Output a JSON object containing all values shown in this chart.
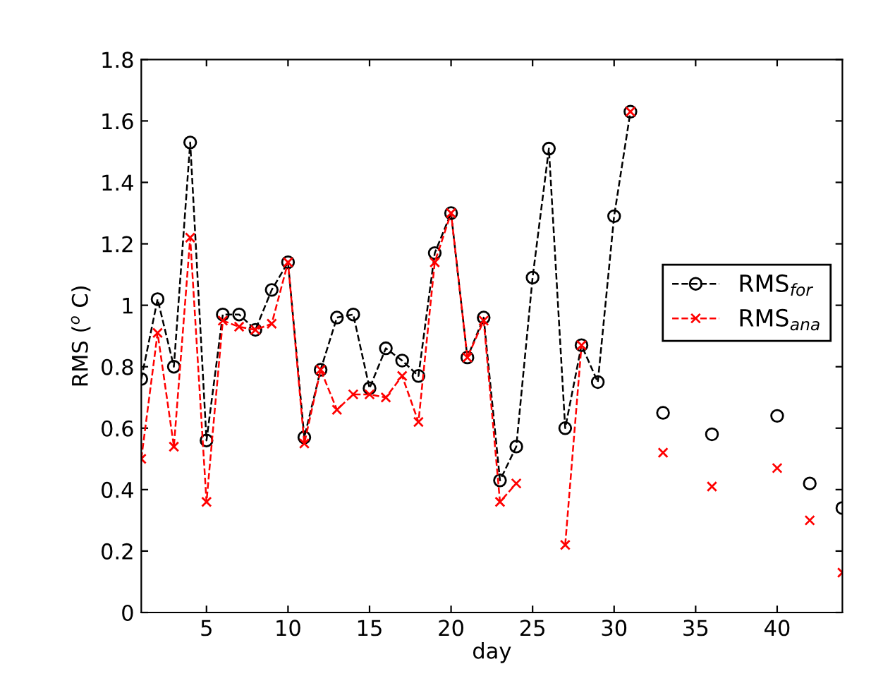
{
  "chart_data": {
    "type": "line",
    "xlabel": "day",
    "ylabel": "RMS ($^{o}$ C)",
    "x": [
      1,
      2,
      3,
      4,
      5,
      6,
      7,
      8,
      9,
      10,
      11,
      12,
      13,
      14,
      15,
      16,
      17,
      18,
      19,
      20,
      21,
      22,
      23,
      24,
      25,
      26,
      27,
      28,
      29,
      30,
      31,
      32,
      33,
      34,
      35,
      36,
      37,
      38,
      39,
      40,
      41,
      42,
      43,
      44
    ],
    "series": [
      {
        "name": "RMS$_{for}$",
        "color": "#000000",
        "marker": "circle",
        "line_style": "dashed",
        "values": [
          0.76,
          1.02,
          0.8,
          1.53,
          0.56,
          0.97,
          0.97,
          0.92,
          1.05,
          1.14,
          0.57,
          0.79,
          0.96,
          0.97,
          0.73,
          0.86,
          0.82,
          0.77,
          1.17,
          1.3,
          0.83,
          0.96,
          0.43,
          0.54,
          1.09,
          1.51,
          0.6,
          0.87,
          0.75,
          1.29,
          1.63,
          null,
          0.65,
          null,
          null,
          0.58,
          null,
          null,
          null,
          0.64,
          null,
          0.42,
          null,
          0.34
        ]
      },
      {
        "name": "RMS$_{ana}$",
        "color": "#ff0000",
        "marker": "cross",
        "line_style": "dashed",
        "values": [
          0.5,
          0.91,
          0.54,
          1.22,
          0.36,
          0.95,
          0.93,
          0.92,
          0.94,
          1.14,
          0.55,
          0.79,
          0.66,
          0.71,
          0.71,
          0.7,
          0.77,
          0.62,
          1.14,
          1.3,
          0.83,
          0.95,
          0.36,
          0.42,
          null,
          null,
          0.22,
          0.87,
          null,
          null,
          1.63,
          null,
          0.52,
          null,
          null,
          0.41,
          null,
          null,
          null,
          0.47,
          null,
          0.3,
          null,
          0.13
        ]
      }
    ],
    "xlim": [
      1,
      44
    ],
    "xticks": [
      5,
      10,
      15,
      20,
      25,
      30,
      35,
      40
    ],
    "ylim": [
      0,
      1.8
    ],
    "yticks": [
      0,
      0.2,
      0.4,
      0.6,
      0.8,
      1,
      1.2,
      1.4,
      1.6,
      1.8
    ],
    "grid": false,
    "legend": "right"
  }
}
